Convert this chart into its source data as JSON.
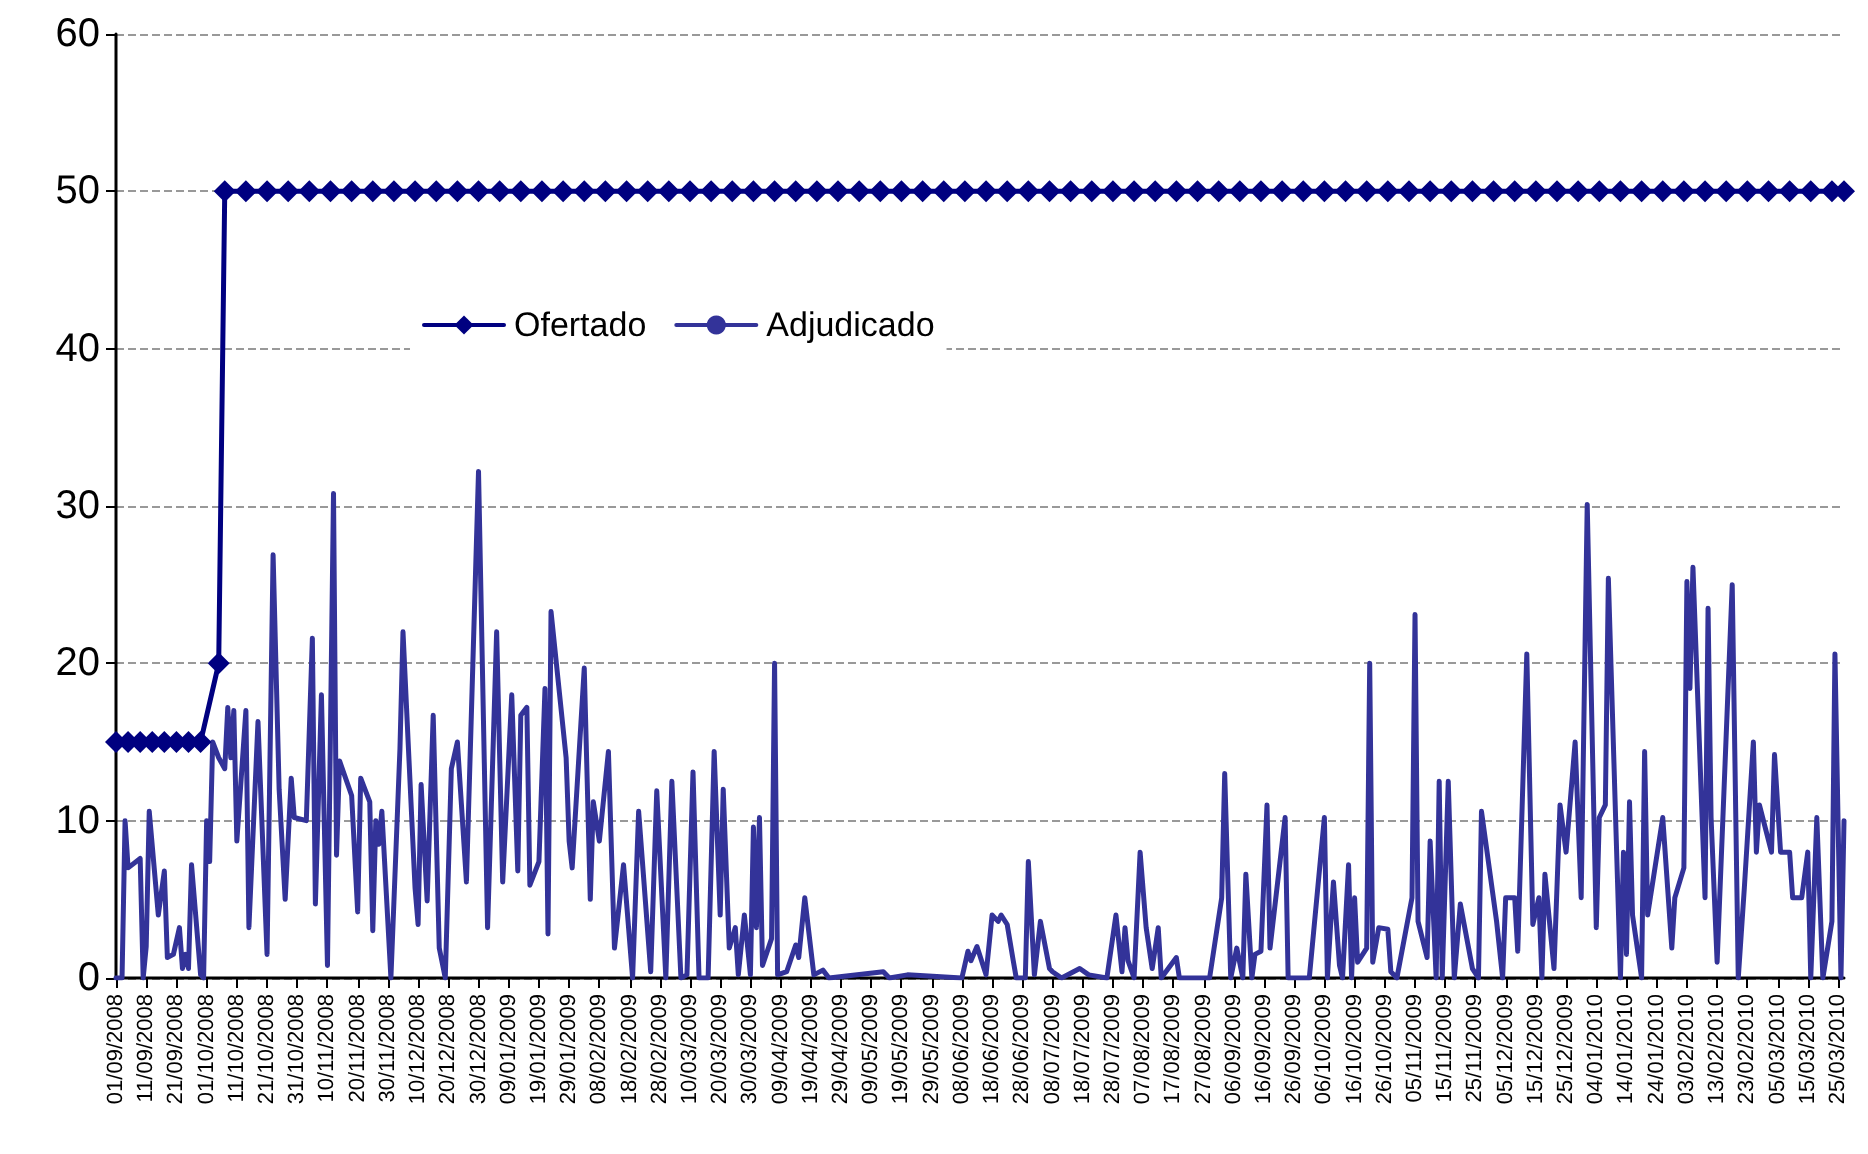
{
  "chart_data": {
    "type": "line",
    "legend": "top left",
    "grid": "y",
    "ylim": [
      0,
      60
    ],
    "yticks": [
      0,
      10,
      20,
      30,
      40,
      50,
      60
    ],
    "xlim": [
      "2008-09-01",
      "2010-03-27"
    ],
    "xticks": [
      {
        "value": "2008-09-01",
        "label": "01/09/2008"
      },
      {
        "value": "2008-09-11",
        "label": "11/09/2008"
      },
      {
        "value": "2008-09-21",
        "label": "21/09/2008"
      },
      {
        "value": "2008-10-01",
        "label": "01/10/2008"
      },
      {
        "value": "2008-10-11",
        "label": "11/10/2008"
      },
      {
        "value": "2008-10-21",
        "label": "21/10/2008"
      },
      {
        "value": "2008-10-31",
        "label": "31/10/2008"
      },
      {
        "value": "2008-11-10",
        "label": "10/11/2008"
      },
      {
        "value": "2008-11-20",
        "label": "20/11/2008"
      },
      {
        "value": "2008-11-30",
        "label": "30/11/2008"
      },
      {
        "value": "2008-12-10",
        "label": "10/12/2008"
      },
      {
        "value": "2008-12-20",
        "label": "20/12/2008"
      },
      {
        "value": "2008-12-30",
        "label": "30/12/2008"
      },
      {
        "value": "2009-01-09",
        "label": "09/01/2009"
      },
      {
        "value": "2009-01-19",
        "label": "19/01/2009"
      },
      {
        "value": "2009-01-29",
        "label": "29/01/2009"
      },
      {
        "value": "2009-02-08",
        "label": "08/02/2009"
      },
      {
        "value": "2009-02-18",
        "label": "18/02/2009"
      },
      {
        "value": "2009-02-28",
        "label": "28/02/2009"
      },
      {
        "value": "2009-03-10",
        "label": "10/03/2009"
      },
      {
        "value": "2009-03-20",
        "label": "20/03/2009"
      },
      {
        "value": "2009-03-30",
        "label": "30/03/2009"
      },
      {
        "value": "2009-04-09",
        "label": "09/04/2009"
      },
      {
        "value": "2009-04-19",
        "label": "19/04/2009"
      },
      {
        "value": "2009-04-29",
        "label": "29/04/2009"
      },
      {
        "value": "2009-05-09",
        "label": "09/05/2009"
      },
      {
        "value": "2009-05-19",
        "label": "19/05/2009"
      },
      {
        "value": "2009-05-29",
        "label": "29/05/2009"
      },
      {
        "value": "2009-06-08",
        "label": "08/06/2009"
      },
      {
        "value": "2009-06-18",
        "label": "18/06/2009"
      },
      {
        "value": "2009-06-28",
        "label": "28/06/2009"
      },
      {
        "value": "2009-07-08",
        "label": "08/07/2009"
      },
      {
        "value": "2009-07-18",
        "label": "18/07/2009"
      },
      {
        "value": "2009-07-28",
        "label": "28/07/2009"
      },
      {
        "value": "2009-08-07",
        "label": "07/08/2009"
      },
      {
        "value": "2009-08-17",
        "label": "17/08/2009"
      },
      {
        "value": "2009-08-27",
        "label": "27/08/2009"
      },
      {
        "value": "2009-09-06",
        "label": "06/09/2009"
      },
      {
        "value": "2009-09-16",
        "label": "16/09/2009"
      },
      {
        "value": "2009-09-26",
        "label": "26/09/2009"
      },
      {
        "value": "2009-10-06",
        "label": "06/10/2009"
      },
      {
        "value": "2009-10-16",
        "label": "16/10/2009"
      },
      {
        "value": "2009-10-26",
        "label": "26/10/2009"
      },
      {
        "value": "2009-11-05",
        "label": "05/11/2009"
      },
      {
        "value": "2009-11-15",
        "label": "15/11/2009"
      },
      {
        "value": "2009-11-25",
        "label": "25/11/2009"
      },
      {
        "value": "2009-12-05",
        "label": "05/12/2009"
      },
      {
        "value": "2009-12-15",
        "label": "15/12/2009"
      },
      {
        "value": "2009-12-25",
        "label": "25/12/2009"
      },
      {
        "value": "2010-01-04",
        "label": "04/01/2010"
      },
      {
        "value": "2010-01-14",
        "label": "14/01/2010"
      },
      {
        "value": "2010-01-24",
        "label": "24/01/2010"
      },
      {
        "value": "2010-02-03",
        "label": "03/02/2010"
      },
      {
        "value": "2010-02-13",
        "label": "13/02/2010"
      },
      {
        "value": "2010-02-23",
        "label": "23/02/2010"
      },
      {
        "value": "2010-03-05",
        "label": "05/03/2010"
      },
      {
        "value": "2010-03-15",
        "label": "15/03/2010"
      },
      {
        "value": "2010-03-25",
        "label": "25/03/2010"
      }
    ],
    "series": [
      {
        "name": "Ofertado",
        "color": "#000080",
        "marker": "diamond",
        "x": [
          "2008-09-01",
          "2008-09-05",
          "2008-09-09",
          "2008-09-13",
          "2008-09-17",
          "2008-09-21",
          "2008-09-25",
          "2008-09-29",
          "2008-10-05",
          "2008-10-07",
          "2008-10-14",
          "2008-10-21",
          "2008-10-28",
          "2008-11-04",
          "2008-11-11",
          "2008-11-18",
          "2008-11-25",
          "2008-12-02",
          "2008-12-09",
          "2008-12-16",
          "2008-12-23",
          "2008-12-30",
          "2009-01-06",
          "2009-01-13",
          "2009-01-20",
          "2009-01-27",
          "2009-02-03",
          "2009-02-10",
          "2009-02-17",
          "2009-02-24",
          "2009-03-03",
          "2009-03-10",
          "2009-03-17",
          "2009-03-24",
          "2009-03-31",
          "2009-04-07",
          "2009-04-14",
          "2009-04-21",
          "2009-04-28",
          "2009-05-05",
          "2009-05-12",
          "2009-05-19",
          "2009-05-26",
          "2009-06-02",
          "2009-06-09",
          "2009-06-16",
          "2009-06-23",
          "2009-06-30",
          "2009-07-07",
          "2009-07-14",
          "2009-07-21",
          "2009-07-28",
          "2009-08-04",
          "2009-08-11",
          "2009-08-18",
          "2009-08-25",
          "2009-09-01",
          "2009-09-08",
          "2009-09-15",
          "2009-09-22",
          "2009-09-29",
          "2009-10-06",
          "2009-10-13",
          "2009-10-20",
          "2009-10-27",
          "2009-11-03",
          "2009-11-10",
          "2009-11-17",
          "2009-11-24",
          "2009-12-01",
          "2009-12-08",
          "2009-12-15",
          "2009-12-22",
          "2009-12-29",
          "2010-01-05",
          "2010-01-12",
          "2010-01-19",
          "2010-01-26",
          "2010-02-02",
          "2010-02-09",
          "2010-02-16",
          "2010-02-23",
          "2010-03-02",
          "2010-03-09",
          "2010-03-16",
          "2010-03-23",
          "2010-03-27"
        ],
        "values": [
          15,
          15,
          15,
          15,
          15,
          15,
          15,
          15,
          20,
          50,
          50,
          50,
          50,
          50,
          50,
          50,
          50,
          50,
          50,
          50,
          50,
          50,
          50,
          50,
          50,
          50,
          50,
          50,
          50,
          50,
          50,
          50,
          50,
          50,
          50,
          50,
          50,
          50,
          50,
          50,
          50,
          50,
          50,
          50,
          50,
          50,
          50,
          50,
          50,
          50,
          50,
          50,
          50,
          50,
          50,
          50,
          50,
          50,
          50,
          50,
          50,
          50,
          50,
          50,
          50,
          50,
          50,
          50,
          50,
          50,
          50,
          50,
          50,
          50,
          50,
          50,
          50,
          50,
          50,
          50,
          50,
          50,
          50,
          50,
          50,
          50,
          50
        ]
      },
      {
        "name": "Adjudicado",
        "color": "#333399",
        "marker": "none",
        "x": [
          "2008-09-01",
          "2008-09-03",
          "2008-09-04",
          "2008-09-05",
          "2008-09-09",
          "2008-09-10",
          "2008-09-11",
          "2008-09-12",
          "2008-09-15",
          "2008-09-17",
          "2008-09-18",
          "2008-09-20",
          "2008-09-22",
          "2008-09-23",
          "2008-09-24",
          "2008-09-25",
          "2008-09-26",
          "2008-09-29",
          "2008-09-30",
          "2008-10-01",
          "2008-10-02",
          "2008-10-03",
          "2008-10-05",
          "2008-10-07",
          "2008-10-08",
          "2008-10-09",
          "2008-10-10",
          "2008-10-11",
          "2008-10-14",
          "2008-10-15",
          "2008-10-18",
          "2008-10-21",
          "2008-10-23",
          "2008-10-25",
          "2008-10-27",
          "2008-10-29",
          "2008-10-30",
          "2008-11-03",
          "2008-11-05",
          "2008-11-06",
          "2008-11-08",
          "2008-11-10",
          "2008-11-12",
          "2008-11-13",
          "2008-11-14",
          "2008-11-18",
          "2008-11-20",
          "2008-11-21",
          "2008-11-24",
          "2008-11-25",
          "2008-11-26",
          "2008-11-27",
          "2008-11-28",
          "2008-12-01",
          "2008-12-04",
          "2008-12-05",
          "2008-12-07",
          "2008-12-09",
          "2008-12-10",
          "2008-12-11",
          "2008-12-13",
          "2008-12-15",
          "2008-12-17",
          "2008-12-19",
          "2008-12-21",
          "2008-12-23",
          "2008-12-26",
          "2008-12-30",
          "2009-01-02",
          "2009-01-05",
          "2009-01-07",
          "2009-01-10",
          "2009-01-12",
          "2009-01-13",
          "2009-01-15",
          "2009-01-16",
          "2009-01-19",
          "2009-01-21",
          "2009-01-22",
          "2009-01-23",
          "2009-01-28",
          "2009-01-29",
          "2009-01-30",
          "2009-02-03",
          "2009-02-05",
          "2009-02-06",
          "2009-02-08",
          "2009-02-11",
          "2009-02-13",
          "2009-02-16",
          "2009-02-19",
          "2009-02-21",
          "2009-02-25",
          "2009-02-27",
          "2009-03-02",
          "2009-03-04",
          "2009-03-07",
          "2009-03-09",
          "2009-03-11",
          "2009-03-13",
          "2009-03-16",
          "2009-03-18",
          "2009-03-20",
          "2009-03-21",
          "2009-03-23",
          "2009-03-25",
          "2009-03-26",
          "2009-03-28",
          "2009-03-30",
          "2009-03-31",
          "2009-04-01",
          "2009-04-02",
          "2009-04-03",
          "2009-04-06",
          "2009-04-07",
          "2009-04-08",
          "2009-04-11",
          "2009-04-14",
          "2009-04-15",
          "2009-04-17",
          "2009-04-20",
          "2009-04-23",
          "2009-04-25",
          "2009-05-13",
          "2009-05-15",
          "2009-05-21",
          "2009-06-08",
          "2009-06-10",
          "2009-06-11",
          "2009-06-13",
          "2009-06-16",
          "2009-06-18",
          "2009-06-20",
          "2009-06-21",
          "2009-06-23",
          "2009-06-25",
          "2009-06-26",
          "2009-06-29",
          "2009-06-30",
          "2009-07-02",
          "2009-07-04",
          "2009-07-07",
          "2009-07-08",
          "2009-07-11",
          "2009-07-17",
          "2009-07-20",
          "2009-07-26",
          "2009-07-29",
          "2009-07-31",
          "2009-08-01",
          "2009-08-02",
          "2009-08-04",
          "2009-08-06",
          "2009-08-08",
          "2009-08-10",
          "2009-08-12",
          "2009-08-13",
          "2009-08-18",
          "2009-08-19",
          "2009-08-29",
          "2009-09-02",
          "2009-09-03",
          "2009-09-05",
          "2009-09-07",
          "2009-09-09",
          "2009-09-10",
          "2009-09-12",
          "2009-09-13",
          "2009-09-15",
          "2009-09-17",
          "2009-09-18",
          "2009-09-23",
          "2009-09-24",
          "2009-10-01",
          "2009-10-06",
          "2009-10-07",
          "2009-10-08",
          "2009-10-09",
          "2009-10-11",
          "2009-10-12",
          "2009-10-14",
          "2009-10-15",
          "2009-10-16",
          "2009-10-17",
          "2009-10-20",
          "2009-10-21",
          "2009-10-22",
          "2009-10-24",
          "2009-10-27",
          "2009-10-28",
          "2009-10-30",
          "2009-11-04",
          "2009-11-05",
          "2009-11-06",
          "2009-11-09",
          "2009-11-10",
          "2009-11-12",
          "2009-11-13",
          "2009-11-14",
          "2009-11-16",
          "2009-11-18",
          "2009-11-20",
          "2009-11-24",
          "2009-11-26",
          "2009-11-27",
          "2009-12-02",
          "2009-12-04",
          "2009-12-05",
          "2009-12-08",
          "2009-12-09",
          "2009-12-12",
          "2009-12-14",
          "2009-12-16",
          "2009-12-17",
          "2009-12-18",
          "2009-12-21",
          "2009-12-23",
          "2009-12-25",
          "2009-12-28",
          "2009-12-30",
          "2010-01-01",
          "2010-01-04",
          "2010-01-05",
          "2010-01-07",
          "2010-01-08",
          "2010-01-12",
          "2010-01-13",
          "2010-01-14",
          "2010-01-15",
          "2010-01-16",
          "2010-01-19",
          "2010-01-20",
          "2010-01-21",
          "2010-01-26",
          "2010-01-29",
          "2010-01-30",
          "2010-02-02",
          "2010-02-03",
          "2010-02-04",
          "2010-02-05",
          "2010-02-09",
          "2010-02-10",
          "2010-02-11",
          "2010-02-13",
          "2010-02-18",
          "2010-02-20",
          "2010-02-22",
          "2010-02-25",
          "2010-02-26",
          "2010-02-27",
          "2010-03-03",
          "2010-03-04",
          "2010-03-06",
          "2010-03-09",
          "2010-03-10",
          "2010-03-13",
          "2010-03-15",
          "2010-03-16",
          "2010-03-18",
          "2010-03-20",
          "2010-03-23",
          "2010-03-24",
          "2010-03-26",
          "2010-03-27"
        ],
        "values": [
          0,
          0,
          10,
          7,
          7.6,
          0,
          2,
          10.6,
          4,
          6.8,
          1.3,
          1.5,
          3.2,
          0.6,
          1.5,
          0.6,
          7.2,
          0.2,
          0,
          10,
          7.4,
          15,
          14,
          13.3,
          17.2,
          14,
          17,
          8.7,
          17,
          3.2,
          16.3,
          1.5,
          26.9,
          12,
          5,
          12.7,
          10.2,
          10,
          21.6,
          4.7,
          18,
          0.8,
          30.8,
          7.8,
          13.8,
          11.6,
          4.2,
          12.7,
          11.2,
          3,
          10,
          8.5,
          10.6,
          0,
          14.6,
          22,
          13.8,
          5.7,
          3.4,
          12.3,
          4.9,
          16.7,
          1.9,
          0,
          13.3,
          15,
          6.1,
          32.2,
          3.2,
          22,
          6.1,
          18,
          6.8,
          16.7,
          17.2,
          5.9,
          7.4,
          18.4,
          2.8,
          23.3,
          14,
          8.7,
          7,
          19.7,
          5,
          11.2,
          8.7,
          14.4,
          1.9,
          7.2,
          0,
          10.6,
          0.4,
          11.9,
          0,
          12.5,
          0,
          0.2,
          13.1,
          0,
          0,
          14.4,
          4,
          12,
          1.9,
          3.2,
          0.2,
          4,
          0.2,
          9.6,
          3.2,
          10.2,
          0.8,
          2.5,
          20,
          0.2,
          0.4,
          2.1,
          1.3,
          5.1,
          0.2,
          0.5,
          0,
          0.4,
          0,
          0.2,
          0,
          1.7,
          1.1,
          2,
          0.2,
          4,
          3.6,
          4,
          3.4,
          1.1,
          0,
          0,
          7.4,
          0.2,
          3.6,
          0.6,
          0.4,
          0,
          0.6,
          0.2,
          0,
          4,
          0.4,
          3.2,
          1.1,
          0,
          8,
          3.2,
          0.6,
          3.2,
          0,
          1.3,
          0,
          0,
          5.1,
          13,
          0,
          1.9,
          0,
          6.6,
          0,
          1.5,
          1.7,
          11,
          1.9,
          10.2,
          0,
          0,
          10.2,
          0,
          3.2,
          6.1,
          0.8,
          0,
          7.2,
          0,
          5.1,
          1,
          1.9,
          20,
          1,
          3.2,
          3.1,
          0.4,
          0,
          5.1,
          23.1,
          3.6,
          1.3,
          8.7,
          0,
          12.5,
          0,
          12.5,
          0,
          4.7,
          0.6,
          0,
          10.6,
          3.6,
          0,
          5.1,
          5.1,
          1.7,
          20.6,
          3.4,
          5.1,
          0,
          6.6,
          0.6,
          11,
          8,
          15,
          5.1,
          30.1,
          3.2,
          10.2,
          11,
          25.4,
          0,
          8,
          1.5,
          11.2,
          4,
          0,
          14.4,
          4,
          10.2,
          1.9,
          5.1,
          7,
          25.2,
          18.4,
          26.1,
          5.1,
          23.5,
          10.2,
          1,
          25,
          0,
          5.7,
          15,
          8,
          11,
          8,
          14.2,
          8,
          8,
          5.1,
          5.1,
          8,
          0,
          10.2,
          0,
          3.6,
          20.6,
          0,
          10
        ]
      }
    ]
  }
}
